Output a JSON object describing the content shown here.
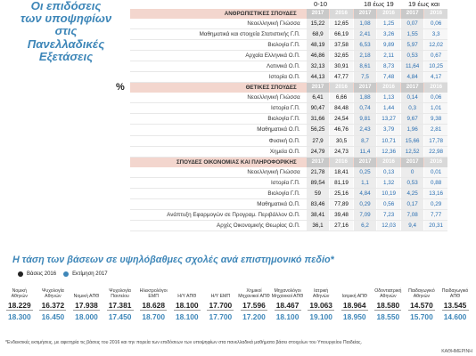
{
  "title": {
    "lines": [
      "Οι επιδόσεις",
      "των υποψηφίων",
      "στις",
      "Πανελλαδικές",
      "Εξετάσεις"
    ],
    "unit": "%"
  },
  "col_headers": [
    "0-10",
    "18 έως 19",
    "19 έως και 20"
  ],
  "sections": [
    {
      "title": "ΑΝΘΡΩΠΙΣΤΙΚΕΣ ΣΠΟΥΔΕΣ",
      "years": [
        "2017",
        "2016",
        "2017",
        "2016",
        "2017",
        "2016"
      ],
      "rows": [
        {
          "subject": "Νεοελληνική Γλώσσα",
          "vals": [
            "15,22",
            "12,65",
            "1,08",
            "1,25",
            "0,07",
            "0,06"
          ]
        },
        {
          "subject": "Μαθηματικά και στοιχεία Στατιστικής Γ.Π.",
          "vals": [
            "68,9",
            "66,19",
            "2,41",
            "3,26",
            "1,55",
            "3,3"
          ]
        },
        {
          "subject": "Βιολογία Γ.Π.",
          "vals": [
            "48,19",
            "37,58",
            "6,53",
            "9,89",
            "5,97",
            "12,02"
          ]
        },
        {
          "subject": "Αρχαία Ελληνικά Ο.Π.",
          "vals": [
            "46,86",
            "32,65",
            "2,18",
            "2,11",
            "0,53",
            "0,67"
          ]
        },
        {
          "subject": "Λατινικά Ο.Π.",
          "vals": [
            "32,13",
            "30,91",
            "8,61",
            "8,73",
            "11,64",
            "10,25"
          ]
        },
        {
          "subject": "Ιστορία Ο.Π.",
          "vals": [
            "44,13",
            "47,77",
            "7,5",
            "7,48",
            "4,84",
            "4,17"
          ]
        }
      ]
    },
    {
      "title": "ΘΕΤΙΚΕΣ ΣΠΟΥΔΕΣ",
      "years": [
        "2017",
        "2016",
        "2017",
        "2016",
        "2017",
        "2016"
      ],
      "rows": [
        {
          "subject": "Νεοελληνική Γλώσσα",
          "vals": [
            "6,41",
            "6,66",
            "1,88",
            "1,13",
            "0,14",
            "0,06"
          ]
        },
        {
          "subject": "Ιστορία Γ.Π.",
          "vals": [
            "90,47",
            "84,48",
            "0,74",
            "1,44",
            "0,3",
            "1,01"
          ]
        },
        {
          "subject": "Βιολογία Γ.Π.",
          "vals": [
            "31,66",
            "24,54",
            "9,81",
            "13,27",
            "9,67",
            "9,38"
          ]
        },
        {
          "subject": "Μαθηματικά Ο.Π.",
          "vals": [
            "56,25",
            "46,76",
            "2,43",
            "3,79",
            "1,96",
            "2,81"
          ]
        },
        {
          "subject": "Φυσική Ο.Π.",
          "vals": [
            "27,9",
            "30,5",
            "8,7",
            "10,71",
            "15,66",
            "17,78"
          ]
        },
        {
          "subject": "Χημεία Ο.Π.",
          "vals": [
            "24,79",
            "24,73",
            "11,4",
            "12,36",
            "12,52",
            "22,98"
          ]
        }
      ]
    },
    {
      "title": "ΣΠΟΥΔΕΣ ΟΙΚΟΝΟΜΙΑΣ ΚΑΙ ΠΛΗΡΟΦΟΡΙΚΗΣ",
      "years": [
        "2017",
        "2016",
        "2017",
        "2016",
        "2017",
        "2016"
      ],
      "rows": [
        {
          "subject": "Νεοελληνική Γλώσσα",
          "vals": [
            "21,78",
            "18,41",
            "0,25",
            "0,13",
            "0",
            "0,01"
          ]
        },
        {
          "subject": "Ιστορία Γ.Π.",
          "vals": [
            "89,54",
            "81,19",
            "1,1",
            "1,32",
            "0,53",
            "0,88"
          ]
        },
        {
          "subject": "Βιολογία Γ.Π.",
          "vals": [
            "59",
            "25,16",
            "4,84",
            "10,19",
            "4,25",
            "13,16"
          ]
        },
        {
          "subject": "Μαθηματικά Ο.Π.",
          "vals": [
            "83,46",
            "77,89",
            "0,29",
            "0,56",
            "0,17",
            "0,29"
          ]
        },
        {
          "subject": "Ανάπτυξη Εφαρμογών σε Προγραμ. Περιβάλλον Ο.Π.",
          "vals": [
            "38,41",
            "39,48",
            "7,09",
            "7,23",
            "7,08",
            "7,77"
          ]
        },
        {
          "subject": "Αρχές Οικονομικής Θεωρίας Ο.Π.",
          "vals": [
            "36,1",
            "27,16",
            "6,2",
            "12,03",
            "9,4",
            "20,31"
          ]
        }
      ]
    }
  ],
  "trend": {
    "title": "Η τάση των βάσεων σε υψηλόβαθμες σχολές ανά επιστημονικό πεδίο*",
    "legend": [
      {
        "label": "Βάσεις 2016",
        "color": "#222222"
      },
      {
        "label": "Εκτίμηση 2017",
        "color": "#3d86b8"
      }
    ],
    "schools": [
      {
        "name": "Νομική Αθηνών",
        "v2016": "18.229",
        "v2017": "18.300"
      },
      {
        "name": "Ψυχολογία Αθηνών",
        "v2016": "16.372",
        "v2017": "16.450"
      },
      {
        "name": "Νομική ΑΠΘ",
        "v2016": "17.938",
        "v2017": "18.000"
      },
      {
        "name": "Ψυχολογία Παντείου",
        "v2016": "17.381",
        "v2017": "17.450"
      },
      {
        "name": "Ηλεκτρολόγοι ΕΜΠ",
        "v2016": "18.628",
        "v2017": "18.700"
      },
      {
        "name": "Η/Υ ΑΠΘ",
        "v2016": "18.100",
        "v2017": "18.100"
      },
      {
        "name": "Η/Υ ΕΜΠ",
        "v2016": "17.700",
        "v2017": "17.700"
      },
      {
        "name": "Χημικοί Μηχανικοί ΑΠΘ",
        "v2016": "17.596",
        "v2017": "17.200"
      },
      {
        "name": "Μηχανολόγοι Μηχανικοί ΑΠΘ",
        "v2016": "18.467",
        "v2017": "18.100"
      },
      {
        "name": "Ιατρική Αθηνών",
        "v2016": "19.063",
        "v2017": "19.100"
      },
      {
        "name": "Ιατρική ΑΠΘ",
        "v2016": "18.964",
        "v2017": "18.950"
      },
      {
        "name": "Οδοντιατρική Αθηνών",
        "v2016": "18.580",
        "v2017": "18.550"
      },
      {
        "name": "Παιδαγωγικό Αθηνών",
        "v2016": "14.570",
        "v2017": "15.700"
      },
      {
        "name": "Παιδαγωγικό ΑΠΘ",
        "v2016": "13.545",
        "v2017": "14.600"
      }
    ]
  },
  "footnote": "*Ενδεικτικές εκτιμήσεις, με αφετηρία τις βάσεις του 2016 και την πορεία των επιδόσεων των υποψηφίων στα πανελλαδικά μαθήματα βάσει στοιχείων του Υπουργείου Παιδείας.",
  "source": "ΚΑΘΗΜΕΡΙΝΗ"
}
